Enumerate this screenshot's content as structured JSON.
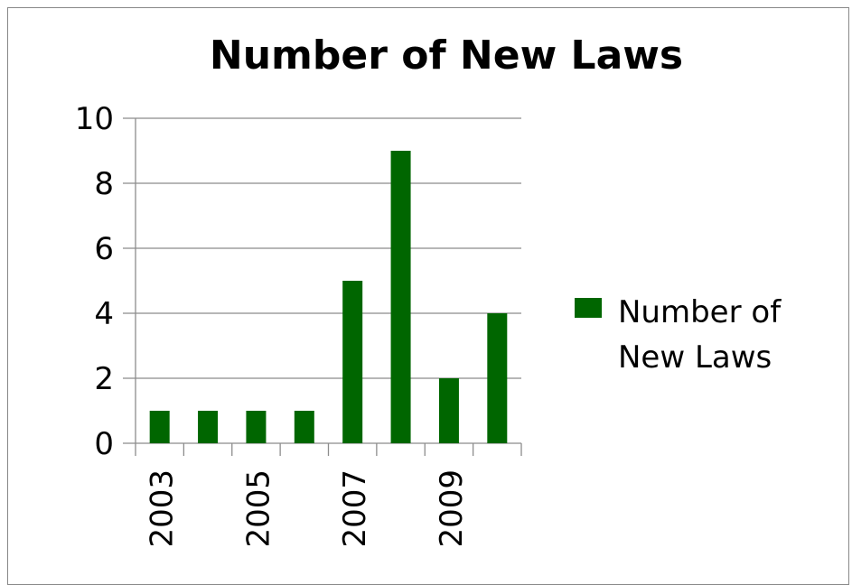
{
  "chart_data": {
    "type": "bar",
    "title": "Number of New Laws",
    "categories": [
      "2003",
      "2004",
      "2005",
      "2006",
      "2007",
      "2008",
      "2009",
      "2010"
    ],
    "x_tick_labels": [
      "2003",
      "",
      "2005",
      "",
      "2007",
      "",
      "2009",
      ""
    ],
    "series": [
      {
        "name": "Number of New Laws",
        "values": [
          1,
          1,
          1,
          1,
          5,
          9,
          2,
          4
        ],
        "color": "#006600"
      }
    ],
    "legend": {
      "position": "right",
      "lines": [
        "Number of",
        "New Laws"
      ]
    },
    "ylim": [
      0,
      10
    ],
    "y_ticks": [
      "0",
      "2",
      "4",
      "6",
      "8",
      "10"
    ],
    "grid": true,
    "xlabel": "",
    "ylabel": ""
  }
}
